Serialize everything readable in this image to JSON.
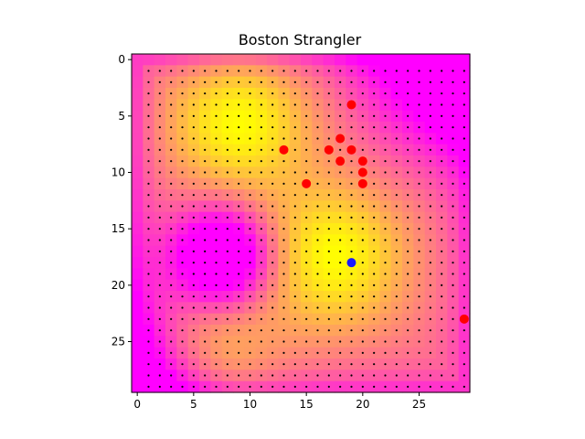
{
  "chart_data": {
    "type": "heatmap",
    "title": "Boston Strangler",
    "xlabel": "",
    "ylabel": "",
    "grid_size": 30,
    "x_ticks": [
      0,
      5,
      10,
      15,
      20,
      25
    ],
    "y_ticks": [
      0,
      5,
      10,
      15,
      20,
      25
    ],
    "xlim": [
      -0.5,
      29.5
    ],
    "ylim": [
      29.5,
      -0.5
    ],
    "y_inverted": true,
    "colormap": "spring",
    "colormap_low": "#ff00ff",
    "colormap_high": "#ffff00",
    "heat_sources": [
      {
        "x": 7.5,
        "y": 17.5,
        "type": "cold"
      },
      {
        "x": 17.5,
        "y": 17.5,
        "type": "hot"
      },
      {
        "x": 5.5,
        "y": 26.5,
        "type": "hot"
      },
      {
        "x": 9.0,
        "y": 5.5,
        "type": "hot"
      },
      {
        "x": 0.0,
        "y": 29.0,
        "type": "cold"
      },
      {
        "x": 29.0,
        "y": 0.0,
        "type": "cold"
      }
    ],
    "grid_points": {
      "color": "#000000",
      "from": 1,
      "to": 29,
      "step": 1
    },
    "red_points": [
      {
        "x": 19,
        "y": 4
      },
      {
        "x": 18,
        "y": 7
      },
      {
        "x": 13,
        "y": 8
      },
      {
        "x": 17,
        "y": 8
      },
      {
        "x": 19,
        "y": 8
      },
      {
        "x": 18,
        "y": 9
      },
      {
        "x": 20,
        "y": 9
      },
      {
        "x": 20,
        "y": 10
      },
      {
        "x": 15,
        "y": 11
      },
      {
        "x": 20,
        "y": 11
      },
      {
        "x": 29,
        "y": 23
      }
    ],
    "blue_points": [
      {
        "x": 19,
        "y": 18
      }
    ],
    "red_color": "#ff0000",
    "blue_color": "#1a1aff"
  }
}
